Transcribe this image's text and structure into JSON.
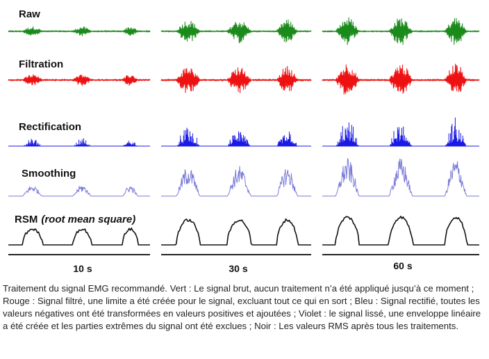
{
  "figure": {
    "rows": [
      {
        "id": "raw",
        "label": "Raw",
        "color": "#1a8a1a"
      },
      {
        "id": "filtration",
        "label": "Filtration",
        "color": "#ee1111"
      },
      {
        "id": "rectification",
        "label": "Rectification",
        "color": "#1a1ae6"
      },
      {
        "id": "smoothing",
        "label": "Smoothing",
        "color": "#7a7ad8"
      },
      {
        "id": "rms",
        "label": "RSM (root mean square)",
        "label_main": "RSM",
        "label_italic": "(root mean square)",
        "color": "#111111"
      }
    ],
    "columns": [
      {
        "label": "10 s"
      },
      {
        "label": "30 s"
      },
      {
        "label": "60 s"
      }
    ]
  },
  "caption": "Traitement du signal EMG recommandé. Vert : Le signal brut, aucun traitement n’a été appliqué jusqu’à ce moment ; Rouge : Signal filtré, une limite a été créée pour le signal, excluant tout ce qui en sort ; Bleu : Signal rectifié, toutes les valeurs négatives ont été transformées en valeurs positives et ajoutées ; Violet : le signal lissé, une enveloppe linéaire a été créée et les parties extrêmes du signal ont été exclues ; Noir : Les valeurs RMS après tous les traitements."
}
